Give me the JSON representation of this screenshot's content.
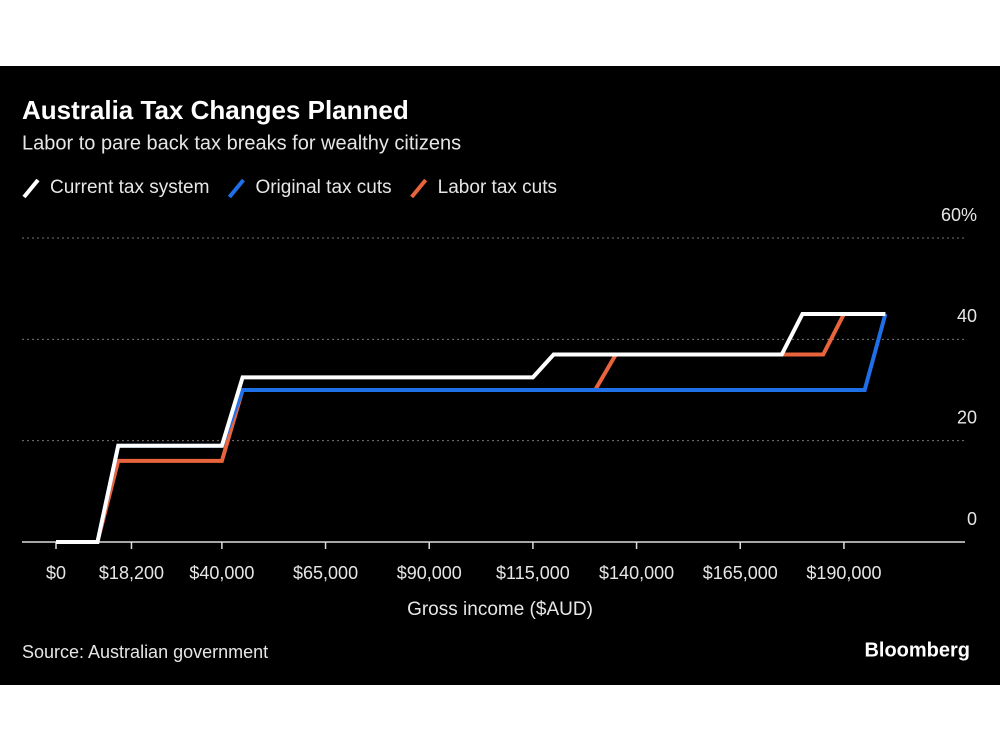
{
  "chart_data": {
    "type": "line",
    "title": "Australia Tax Changes Planned",
    "subtitle": "Labor to pare back tax breaks for wealthy citizens",
    "x_label": "Gross income ($AUD)",
    "source": "Source: Australian government",
    "brand": "Bloomberg",
    "xlim": [
      0,
      220000
    ],
    "ylim": [
      0,
      60
    ],
    "xticks": [
      {
        "value": 0,
        "label": "$0"
      },
      {
        "value": 18200,
        "label": "$18,200"
      },
      {
        "value": 40000,
        "label": "$40,000"
      },
      {
        "value": 65000,
        "label": "$65,000"
      },
      {
        "value": 90000,
        "label": "$90,000"
      },
      {
        "value": 115000,
        "label": "$115,000"
      },
      {
        "value": 140000,
        "label": "$140,000"
      },
      {
        "value": 165000,
        "label": "$165,000"
      },
      {
        "value": 190000,
        "label": "$190,000"
      }
    ],
    "yticks": [
      0,
      20,
      40,
      {
        "value": 60,
        "label": "60%"
      }
    ],
    "grid": true,
    "series": [
      {
        "name": "Labor tax cuts",
        "color": "#e8643c",
        "x": [
          0,
          10000,
          15000,
          40000,
          45000,
          130000,
          135000,
          185000,
          190000,
          200000
        ],
        "values": [
          0,
          0,
          16,
          16,
          30,
          30,
          37,
          37,
          45,
          45
        ]
      },
      {
        "name": "Original tax cuts",
        "color": "#1f6fe8",
        "x": [
          0,
          10000,
          15000,
          40000,
          45000,
          195000,
          200000
        ],
        "values": [
          0,
          0,
          19,
          19,
          30,
          30,
          45
        ]
      },
      {
        "name": "Current tax system",
        "color": "#ffffff",
        "x": [
          0,
          10000,
          15000,
          40000,
          45000,
          115000,
          120000,
          175000,
          180000,
          200000
        ],
        "values": [
          0,
          0,
          19,
          19,
          32.5,
          32.5,
          37,
          37,
          45,
          45
        ]
      }
    ],
    "legend_order": [
      2,
      1,
      0
    ]
  }
}
